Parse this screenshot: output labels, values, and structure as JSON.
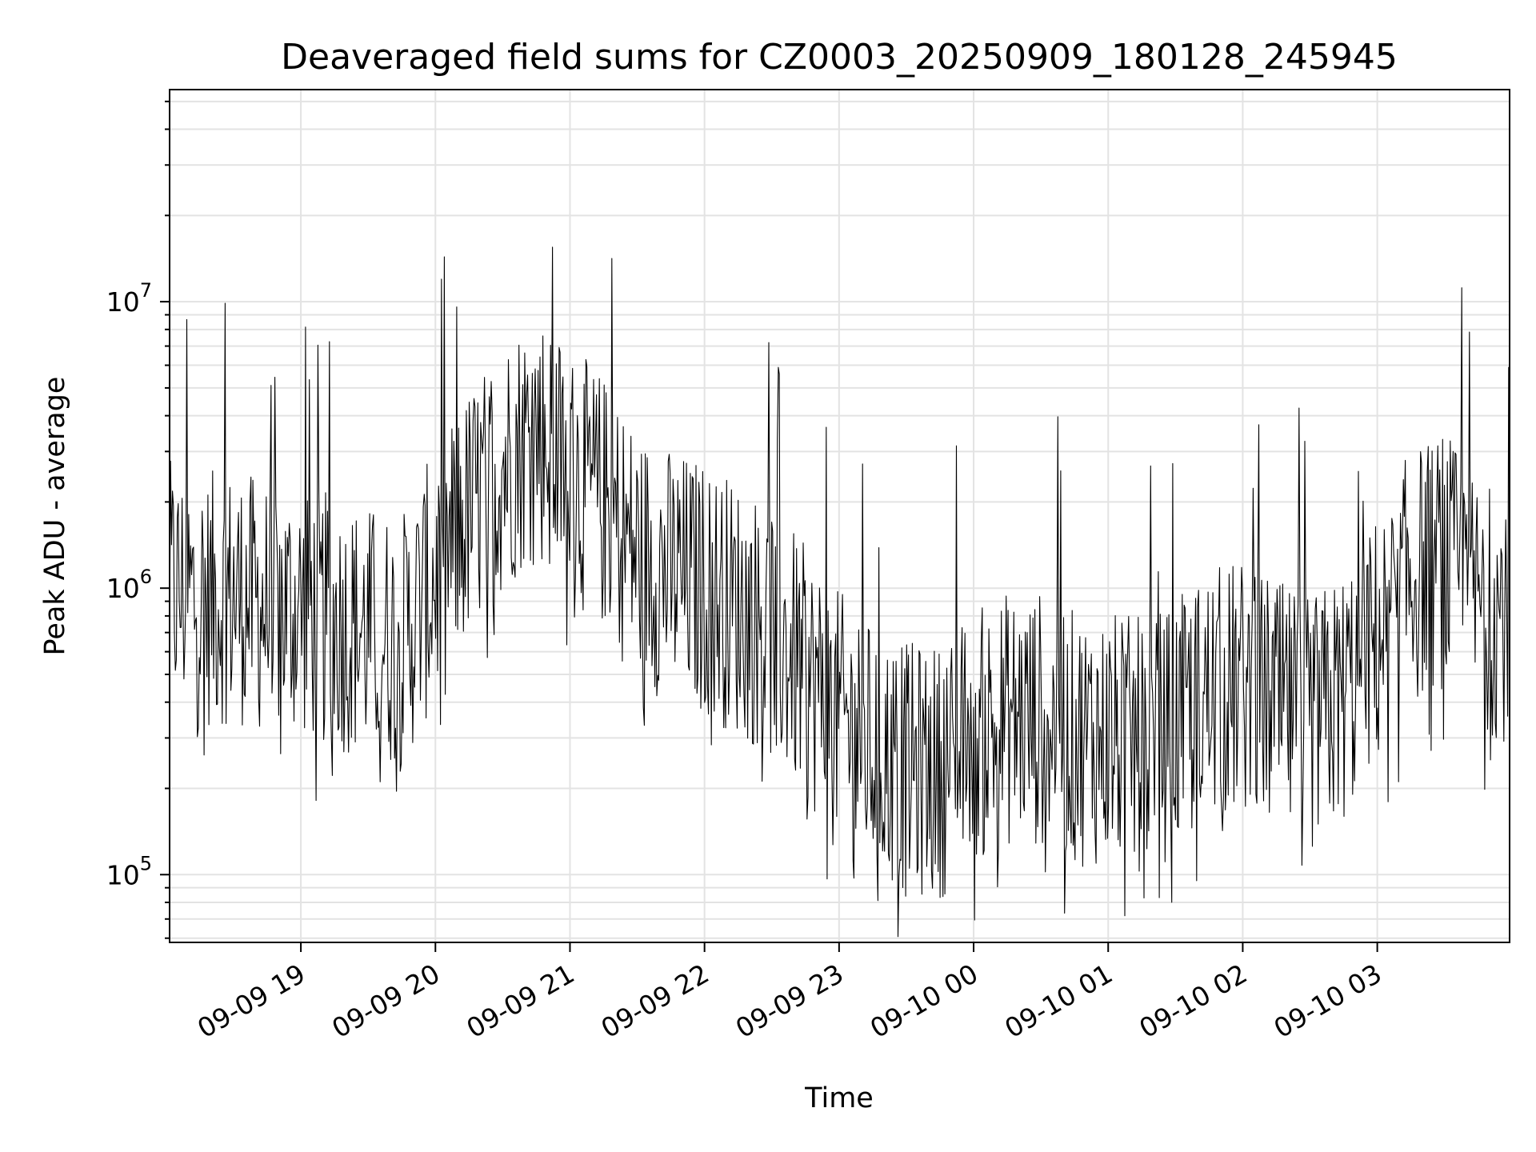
{
  "chart_data": {
    "type": "line",
    "title": "Deaveraged field sums for CZ0003_20250909_180128_245945",
    "xlabel": "Time",
    "ylabel": "Peak ADU - average",
    "yscale": "log",
    "ylim": [
      58000,
      55000000
    ],
    "xlim": [
      "2025-09-09 18:01:28",
      "2025-09-10 03:59:00"
    ],
    "grid": true,
    "line_color": "#000000",
    "x_tick_labels": [
      "09-09 19",
      "09-09 20",
      "09-09 21",
      "09-09 22",
      "09-09 23",
      "09-10 00",
      "09-10 01",
      "09-10 02",
      "09-10 03"
    ],
    "x_ticks": [
      "2025-09-09 19:00",
      "2025-09-09 20:00",
      "2025-09-09 21:00",
      "2025-09-09 22:00",
      "2025-09-09 23:00",
      "2025-09-10 00:00",
      "2025-09-10 01:00",
      "2025-09-10 02:00",
      "2025-09-10 03:00"
    ],
    "y_tick_labels": [
      {
        "base": "10",
        "exp": "5",
        "value": 100000
      },
      {
        "base": "10",
        "exp": "6",
        "value": 1000000
      },
      {
        "base": "10",
        "exp": "7",
        "value": 10000000
      }
    ],
    "series": [
      {
        "x": [
          "2025-09-09 18:01",
          "2025-09-09 18:15",
          "2025-09-09 18:30",
          "2025-09-09 18:45",
          "2025-09-09 19:00",
          "2025-09-09 19:15",
          "2025-09-09 19:30",
          "2025-09-09 19:45",
          "2025-09-09 20:00",
          "2025-09-09 20:15",
          "2025-09-09 20:30",
          "2025-09-09 20:45",
          "2025-09-09 21:00",
          "2025-09-09 21:15",
          "2025-09-09 21:30",
          "2025-09-09 21:45",
          "2025-09-09 22:00",
          "2025-09-09 22:15",
          "2025-09-09 22:30",
          "2025-09-09 22:45",
          "2025-09-09 23:00",
          "2025-09-09 23:15",
          "2025-09-09 23:30",
          "2025-09-09 23:45",
          "2025-09-10 00:00",
          "2025-09-10 00:15",
          "2025-09-10 00:30",
          "2025-09-10 00:45",
          "2025-09-10 01:00",
          "2025-09-10 01:15",
          "2025-09-10 01:30",
          "2025-09-10 01:45",
          "2025-09-10 02:00",
          "2025-09-10 02:15",
          "2025-09-10 02:30",
          "2025-09-10 02:45",
          "2025-09-10 03:00",
          "2025-09-10 03:15",
          "2025-09-10 03:30",
          "2025-09-10 03:45",
          "2025-09-10 03:59"
        ],
        "y": [
          1000000,
          900000,
          950000,
          850000,
          850000,
          750000,
          700000,
          650000,
          1100000,
          1800000,
          2700000,
          3600000,
          2500000,
          2000000,
          1300000,
          1100000,
          1000000,
          850000,
          700000,
          500000,
          350000,
          270000,
          230000,
          230000,
          300000,
          350000,
          350000,
          300000,
          300000,
          280000,
          320000,
          420000,
          450000,
          380000,
          330000,
          420000,
          650000,
          1100000,
          1250000,
          900000,
          800000
        ]
      }
    ]
  }
}
